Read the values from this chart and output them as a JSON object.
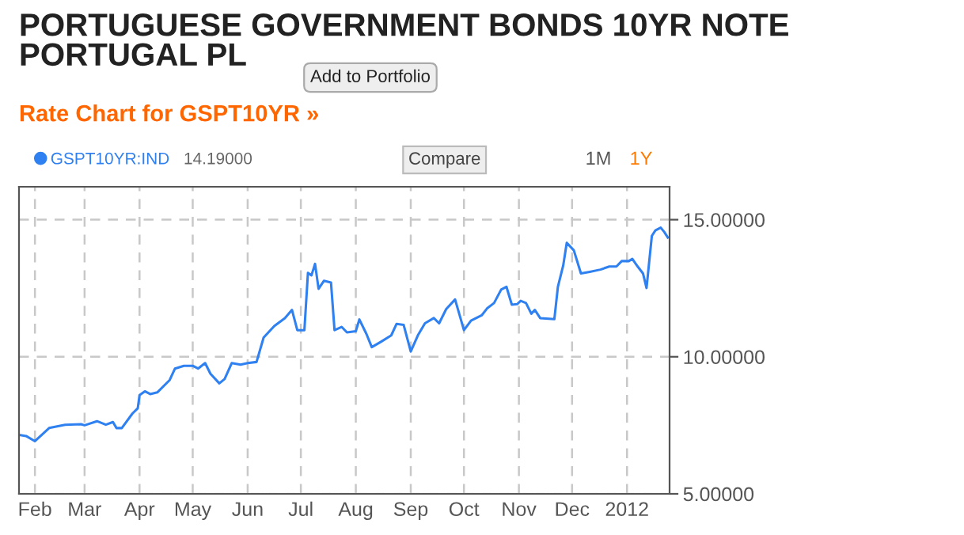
{
  "chart_data": {
    "type": "line",
    "title": "PORTUGUESE GOVERNMENT BONDS 10YR NOTE\nPORTUGAL PL",
    "subtitle": "Rate Chart for GSPT10YR »",
    "annotations": [
      "Add to Portfolio",
      "14.19000",
      "Compare",
      "1M",
      "1Y"
    ],
    "series": [
      {
        "name": "GSPT10YR:IND",
        "color": "#2f80f0",
        "x": [
          "2011-01-23",
          "2011-01-27",
          "2011-02-01",
          "2011-02-09",
          "2011-02-18",
          "2011-02-27",
          "2011-03-01",
          "2011-03-08",
          "2011-03-13",
          "2011-03-17",
          "2011-03-19",
          "2011-03-22",
          "2011-03-28",
          "2011-03-31",
          "2011-04-01",
          "2011-04-04",
          "2011-04-07",
          "2011-04-11",
          "2011-04-18",
          "2011-04-21",
          "2011-04-26",
          "2011-05-01",
          "2011-05-04",
          "2011-05-08",
          "2011-05-11",
          "2011-05-16",
          "2011-05-19",
          "2011-05-23",
          "2011-05-28",
          "2011-06-01",
          "2011-06-06",
          "2011-06-10",
          "2011-06-16",
          "2011-06-22",
          "2011-06-26",
          "2011-06-29",
          "2011-07-03",
          "2011-07-05",
          "2011-07-07",
          "2011-07-09",
          "2011-07-11",
          "2011-07-14",
          "2011-07-18",
          "2011-07-20",
          "2011-07-24",
          "2011-07-27",
          "2011-08-01",
          "2011-08-03",
          "2011-08-07",
          "2011-08-10",
          "2011-08-15",
          "2011-08-21",
          "2011-08-24",
          "2011-08-28",
          "2011-09-01",
          "2011-09-05",
          "2011-09-09",
          "2011-09-14",
          "2011-09-17",
          "2011-09-21",
          "2011-09-26",
          "2011-10-01",
          "2011-10-05",
          "2011-10-11",
          "2011-10-14",
          "2011-10-18",
          "2011-10-22",
          "2011-10-25",
          "2011-10-28",
          "2011-10-31",
          "2011-11-02",
          "2011-11-05",
          "2011-11-08",
          "2011-11-10",
          "2011-11-13",
          "2011-11-21",
          "2011-11-23",
          "2011-11-26",
          "2011-11-28",
          "2011-12-02",
          "2011-12-06",
          "2011-12-11",
          "2011-12-17",
          "2011-12-22",
          "2011-12-26",
          "2011-12-29",
          "2012-01-02",
          "2012-01-04",
          "2012-01-07",
          "2012-01-10",
          "2012-01-12",
          "2012-01-15",
          "2012-01-17",
          "2012-01-20",
          "2012-01-22",
          "2012-01-24"
        ],
        "values": [
          7.15,
          7.11,
          6.92,
          7.4,
          7.52,
          7.54,
          7.5,
          7.65,
          7.52,
          7.62,
          7.4,
          7.4,
          7.93,
          8.12,
          8.6,
          8.74,
          8.64,
          8.7,
          9.15,
          9.57,
          9.67,
          9.67,
          9.57,
          9.77,
          9.38,
          9.03,
          9.19,
          9.77,
          9.71,
          9.77,
          9.81,
          10.7,
          11.12,
          11.41,
          11.71,
          10.97,
          10.97,
          13.06,
          12.97,
          13.39,
          12.48,
          12.77,
          12.71,
          10.97,
          11.09,
          10.89,
          10.93,
          11.36,
          10.83,
          10.35,
          10.54,
          10.78,
          11.2,
          11.16,
          10.19,
          10.78,
          11.22,
          11.41,
          11.22,
          11.74,
          12.09,
          10.97,
          11.32,
          11.51,
          11.76,
          11.96,
          12.45,
          12.55,
          11.9,
          11.92,
          12.04,
          11.96,
          11.57,
          11.71,
          11.41,
          11.37,
          12.55,
          13.33,
          14.16,
          13.88,
          13.04,
          13.1,
          13.18,
          13.29,
          13.29,
          13.49,
          13.49,
          13.57,
          13.29,
          13.04,
          12.51,
          14.41,
          14.61,
          14.71,
          14.55,
          14.35
        ]
      }
    ],
    "xlim": [
      "2011-01-23",
      "2012-01-25"
    ],
    "xticks": [
      {
        "value": "2011-02-01",
        "label": "Feb"
      },
      {
        "value": "2011-03-01",
        "label": "Mar"
      },
      {
        "value": "2011-04-01",
        "label": "Apr"
      },
      {
        "value": "2011-05-01",
        "label": "May"
      },
      {
        "value": "2011-06-01",
        "label": "Jun"
      },
      {
        "value": "2011-07-01",
        "label": "Jul"
      },
      {
        "value": "2011-08-01",
        "label": "Aug"
      },
      {
        "value": "2011-09-01",
        "label": "Sep"
      },
      {
        "value": "2011-10-01",
        "label": "Oct"
      },
      {
        "value": "2011-11-01",
        "label": "Nov"
      },
      {
        "value": "2011-12-01",
        "label": "Dec"
      },
      {
        "value": "2012-01-01",
        "label": "2012"
      }
    ],
    "ylim": [
      5,
      16.2
    ],
    "yticks": [
      {
        "value": 5,
        "label": "5.00000"
      },
      {
        "value": 10,
        "label": "10.00000"
      },
      {
        "value": 15,
        "label": "15.00000"
      }
    ],
    "grid": true,
    "legend": "top left",
    "marker": "none",
    "line_style": "solid"
  }
}
